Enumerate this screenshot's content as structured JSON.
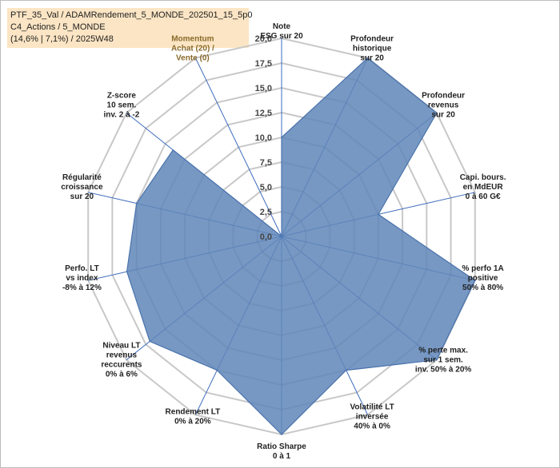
{
  "title": {
    "line1": "PTF_35_Val / ADAMRendement_5_MONDE_202501_15_5p0",
    "line2": "C4_Actions / 5_MONDE",
    "line3": "(14,6% | 7,1%) / 2025W48"
  },
  "colors": {
    "fill": "#5f86b8",
    "stroke": "#4a73ad",
    "grid": "#c8c8c8",
    "spoke": "#3d6bbd",
    "title_bg": "#fbe5c4"
  },
  "chart_data": {
    "type": "radar",
    "title": "PTF_35_Val / ADAMRendement_5_MONDE_202501_15_5p0",
    "rmin": 0,
    "rmax": 20,
    "ticks": [
      "0,0",
      "2,5",
      "5,0",
      "7,5",
      "10,0",
      "12,5",
      "15,0",
      "17,5",
      "20,0"
    ],
    "tick_values": [
      0,
      2.5,
      5,
      7.5,
      10,
      12.5,
      15,
      17.5,
      20
    ],
    "axes": [
      {
        "lines": [
          "Note",
          "ESG sur 20"
        ]
      },
      {
        "lines": [
          "Profondeur",
          "historique",
          "sur 20"
        ]
      },
      {
        "lines": [
          "Profondeur",
          "revenus",
          "sur 20"
        ]
      },
      {
        "lines": [
          "Capi. bours.",
          "en MdEUR",
          "0 à 60 G€"
        ]
      },
      {
        "lines": [
          "% perfo 1A",
          "positive",
          "50% à 80%"
        ]
      },
      {
        "lines": [
          "% perte max.",
          "sur 1 sem.",
          "inv. 50% à 20%"
        ]
      },
      {
        "lines": [
          "Volatilité LT",
          "inversée",
          "40% à 0%"
        ]
      },
      {
        "lines": [
          "Ratio Sharpe",
          "0 à 1"
        ]
      },
      {
        "lines": [
          "Rendement LT",
          "0% à 20%"
        ]
      },
      {
        "lines": [
          "Niveau LT",
          "revenus",
          "reccurents",
          "0% à 6%"
        ]
      },
      {
        "lines": [
          "Perfo. LT",
          "vs index",
          "-8% à 12%"
        ]
      },
      {
        "lines": [
          "Régularité",
          "croissance",
          "sur 20"
        ]
      },
      {
        "lines": [
          "Z-score",
          "10 sem.",
          "inv. 2 à -2"
        ]
      },
      {
        "lines": [
          "Momentum",
          "Achat (20) /",
          "Vente (0)"
        ]
      }
    ],
    "series": [
      {
        "name": "PTF_35_Val",
        "values": [
          10.0,
          20.0,
          20.0,
          10.0,
          20.0,
          20.0,
          15.0,
          20.0,
          15.0,
          17.0,
          16.0,
          15.0,
          14.0,
          0.0
        ]
      }
    ]
  }
}
